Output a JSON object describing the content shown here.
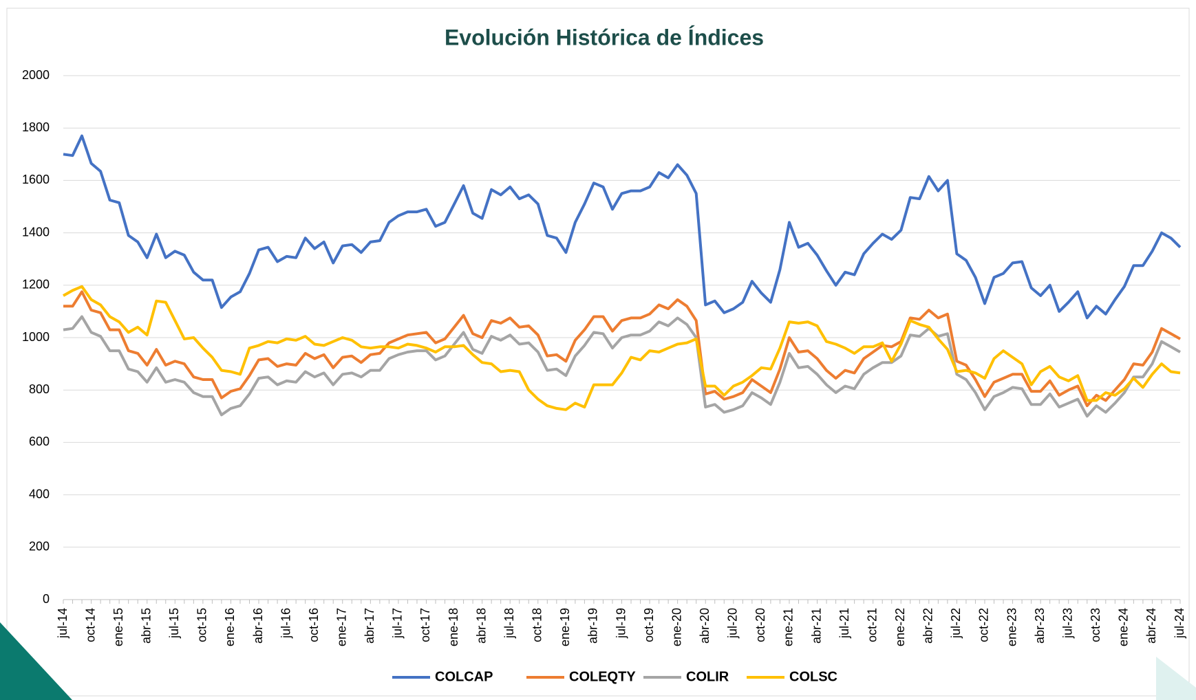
{
  "chart_data": {
    "type": "line",
    "title": "Evolución Histórica de Índices",
    "categories": [
      "jul-14",
      null,
      null,
      "oct-14",
      null,
      null,
      "ene-15",
      null,
      null,
      "abr-15",
      null,
      null,
      "jul-15",
      null,
      null,
      "oct-15",
      null,
      null,
      "ene-16",
      null,
      null,
      "abr-16",
      null,
      null,
      "jul-16",
      null,
      null,
      "oct-16",
      null,
      null,
      "ene-17",
      null,
      null,
      "abr-17",
      null,
      null,
      "jul-17",
      null,
      null,
      "oct-17",
      null,
      null,
      "ene-18",
      null,
      null,
      "abr-18",
      null,
      null,
      "jul-18",
      null,
      null,
      "oct-18",
      null,
      null,
      "ene-19",
      null,
      null,
      "abr-19",
      null,
      null,
      "jul-19",
      null,
      null,
      "oct-19",
      null,
      null,
      "ene-20",
      null,
      null,
      "abr-20",
      null,
      null,
      "jul-20",
      null,
      null,
      "oct-20",
      null,
      null,
      "ene-21",
      null,
      null,
      "abr-21",
      null,
      null,
      "jul-21",
      null,
      null,
      "oct-21",
      null,
      null,
      "ene-22",
      null,
      null,
      "abr-22",
      null,
      null,
      "jul-22",
      null,
      null,
      "oct-22",
      null,
      null,
      "ene-23",
      null,
      null,
      "abr-23",
      null,
      null,
      "jul-23",
      null,
      null,
      "oct-23",
      null,
      null,
      "ene-24",
      null,
      null,
      "abr-24",
      null,
      null,
      "jul-24"
    ],
    "series": [
      {
        "name": "COLCAP",
        "color": "#4472c4",
        "values": [
          1700,
          1695,
          1770,
          1665,
          1635,
          1525,
          1515,
          1390,
          1365,
          1305,
          1395,
          1305,
          1330,
          1315,
          1250,
          1220,
          1220,
          1115,
          1155,
          1175,
          1245,
          1335,
          1345,
          1290,
          1310,
          1305,
          1380,
          1340,
          1365,
          1285,
          1350,
          1355,
          1325,
          1365,
          1370,
          1440,
          1465,
          1480,
          1480,
          1490,
          1425,
          1440,
          1510,
          1580,
          1475,
          1455,
          1565,
          1545,
          1575,
          1530,
          1545,
          1510,
          1390,
          1380,
          1325,
          1440,
          1510,
          1590,
          1575,
          1490,
          1550,
          1560,
          1560,
          1575,
          1630,
          1610,
          1660,
          1620,
          1550,
          1125,
          1140,
          1095,
          1110,
          1135,
          1215,
          1170,
          1135,
          1260,
          1440,
          1345,
          1360,
          1315,
          1255,
          1200,
          1250,
          1240,
          1320,
          1360,
          1395,
          1375,
          1410,
          1535,
          1530,
          1615,
          1560,
          1600,
          1320,
          1295,
          1230,
          1130,
          1230,
          1245,
          1285,
          1290,
          1190,
          1160,
          1200,
          1100,
          1135,
          1175,
          1075,
          1120,
          1090,
          1145,
          1195,
          1275,
          1275,
          1330,
          1400,
          1380,
          1345
        ]
      },
      {
        "name": "COLEQTY",
        "color": "#ed7d31",
        "values": [
          1120,
          1120,
          1175,
          1105,
          1095,
          1030,
          1030,
          950,
          940,
          895,
          955,
          895,
          910,
          900,
          850,
          840,
          840,
          770,
          795,
          805,
          855,
          915,
          920,
          890,
          900,
          895,
          940,
          920,
          935,
          885,
          925,
          930,
          905,
          935,
          940,
          980,
          995,
          1010,
          1015,
          1020,
          980,
          995,
          1040,
          1085,
          1015,
          1000,
          1065,
          1055,
          1075,
          1040,
          1045,
          1010,
          930,
          935,
          910,
          990,
          1030,
          1080,
          1080,
          1025,
          1065,
          1075,
          1075,
          1090,
          1125,
          1110,
          1145,
          1120,
          1065,
          785,
          795,
          765,
          775,
          790,
          840,
          815,
          790,
          880,
          1000,
          945,
          950,
          920,
          875,
          845,
          875,
          865,
          920,
          945,
          970,
          965,
          985,
          1075,
          1070,
          1105,
          1075,
          1090,
          910,
          895,
          840,
          775,
          830,
          845,
          860,
          860,
          795,
          795,
          835,
          780,
          800,
          815,
          740,
          780,
          760,
          800,
          840,
          900,
          895,
          945,
          1035,
          1015,
          995
        ]
      },
      {
        "name": "COLIR",
        "color": "#a5a5a5",
        "values": [
          1030,
          1035,
          1080,
          1020,
          1005,
          950,
          950,
          880,
          870,
          830,
          885,
          830,
          840,
          830,
          790,
          775,
          775,
          705,
          730,
          740,
          785,
          845,
          850,
          820,
          835,
          830,
          870,
          850,
          865,
          820,
          860,
          865,
          850,
          875,
          875,
          920,
          935,
          945,
          950,
          950,
          915,
          930,
          975,
          1020,
          955,
          940,
          1005,
          990,
          1010,
          975,
          980,
          945,
          875,
          880,
          855,
          930,
          970,
          1020,
          1015,
          960,
          1000,
          1010,
          1010,
          1025,
          1060,
          1045,
          1075,
          1050,
          1000,
          735,
          745,
          715,
          725,
          740,
          790,
          770,
          745,
          830,
          940,
          885,
          890,
          860,
          820,
          790,
          815,
          805,
          860,
          885,
          905,
          905,
          930,
          1010,
          1005,
          1035,
          1005,
          1015,
          860,
          840,
          790,
          725,
          775,
          790,
          810,
          805,
          745,
          745,
          785,
          735,
          750,
          765,
          700,
          740,
          715,
          750,
          790,
          850,
          850,
          900,
          985,
          965,
          945
        ]
      },
      {
        "name": "COLSC",
        "color": "#ffc000",
        "values": [
          1160,
          1180,
          1195,
          1145,
          1125,
          1080,
          1060,
          1020,
          1040,
          1010,
          1140,
          1135,
          1065,
          995,
          1000,
          960,
          925,
          875,
          870,
          860,
          960,
          970,
          985,
          980,
          995,
          990,
          1005,
          975,
          970,
          985,
          1000,
          990,
          965,
          960,
          965,
          965,
          960,
          975,
          970,
          960,
          945,
          965,
          965,
          970,
          935,
          905,
          900,
          870,
          875,
          870,
          800,
          765,
          740,
          730,
          725,
          750,
          735,
          820,
          820,
          820,
          865,
          925,
          915,
          950,
          945,
          960,
          975,
          980,
          995,
          815,
          815,
          780,
          815,
          830,
          855,
          885,
          880,
          960,
          1060,
          1055,
          1060,
          1045,
          985,
          975,
          960,
          940,
          965,
          965,
          980,
          910,
          975,
          1065,
          1050,
          1040,
          995,
          955,
          870,
          875,
          865,
          845,
          920,
          950,
          925,
          900,
          820,
          870,
          890,
          850,
          835,
          855,
          760,
          760,
          790,
          780,
          805,
          845,
          810,
          860,
          900,
          870,
          865
        ]
      }
    ],
    "ylim": [
      0,
      2000
    ],
    "yticks": [
      0,
      200,
      400,
      600,
      800,
      1000,
      1200,
      1400,
      1600,
      1800,
      2000
    ],
    "grid": true,
    "legend": "bottom"
  }
}
